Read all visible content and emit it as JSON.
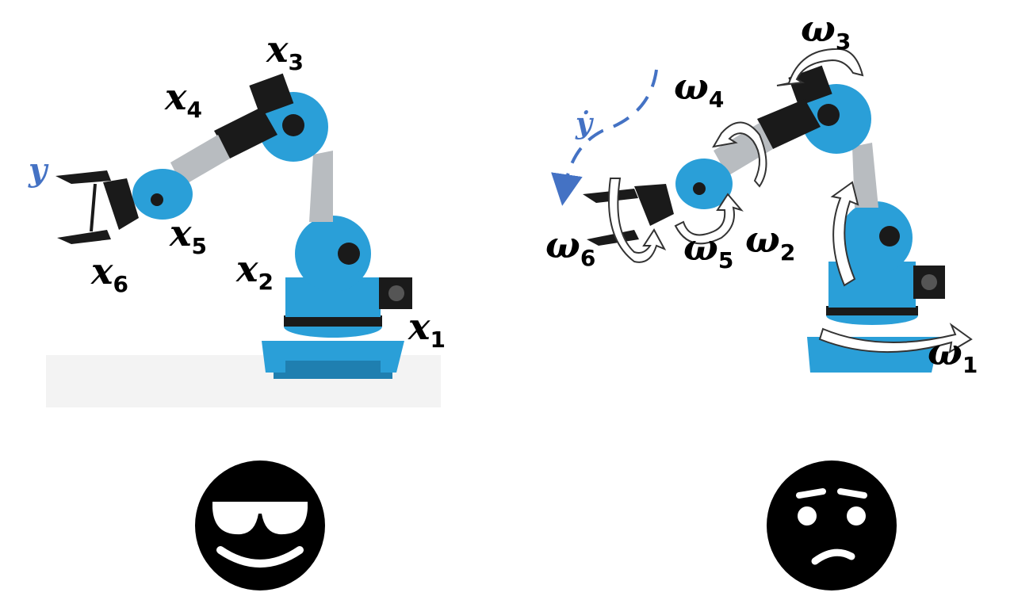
{
  "colors": {
    "robot_blue": "#2a9fd8",
    "robot_dark": "#1a1a1a",
    "velocity_blue": "#4472c4",
    "emoji": "#000000"
  },
  "left_panel": {
    "joint_labels": [
      {
        "base": "x",
        "sub": "1"
      },
      {
        "base": "x",
        "sub": "2"
      },
      {
        "base": "x",
        "sub": "3"
      },
      {
        "base": "x",
        "sub": "4"
      },
      {
        "base": "x",
        "sub": "5"
      },
      {
        "base": "x",
        "sub": "6"
      }
    ],
    "output_label": "y",
    "emoji": "cool-sunglasses-icon"
  },
  "right_panel": {
    "joint_labels": [
      {
        "base": "ω",
        "sub": "1"
      },
      {
        "base": "ω",
        "sub": "2"
      },
      {
        "base": "ω",
        "sub": "3"
      },
      {
        "base": "ω",
        "sub": "4"
      },
      {
        "base": "ω",
        "sub": "5"
      },
      {
        "base": "ω",
        "sub": "6"
      }
    ],
    "output_label": "ẏ",
    "emoji": "worried-face-icon"
  }
}
